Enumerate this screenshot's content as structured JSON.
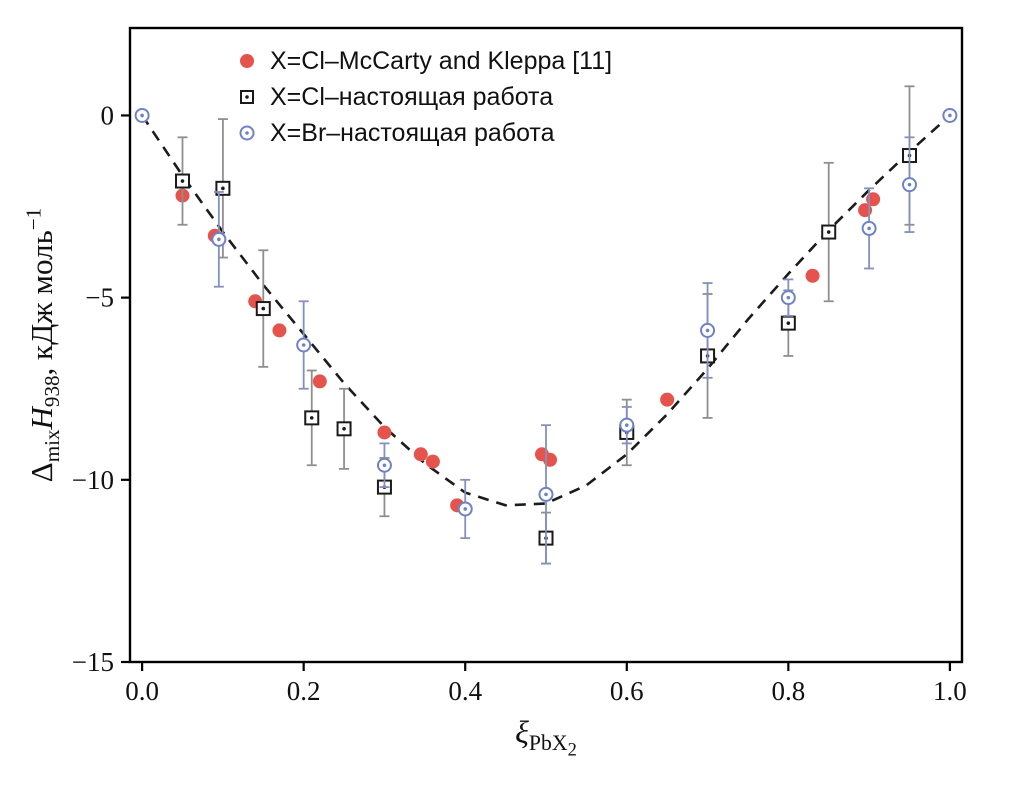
{
  "chart_data": {
    "type": "scatter",
    "title": "",
    "xlabel": "ξ_PbX2",
    "ylabel": "Δ_mix H_938, кДж моль^−1",
    "xlabel_parts": {
      "base": "ξ",
      "sub": "PbX",
      "subsub": "2"
    },
    "ylabel_parts": {
      "delta": "Δ",
      "delta_sub": "mix",
      "symbol": "H",
      "symbol_sub": "938",
      "units": ", кДж моль",
      "units_sup": "−1"
    },
    "xlim": [
      -0.015,
      1.015
    ],
    "ylim": [
      -15,
      2.4
    ],
    "grid": false,
    "legend_position": "top-center-inside",
    "xticks": [
      {
        "v": 0.0,
        "label": "0.0"
      },
      {
        "v": 0.2,
        "label": "0.2"
      },
      {
        "v": 0.4,
        "label": "0.4"
      },
      {
        "v": 0.6,
        "label": "0.6"
      },
      {
        "v": 0.8,
        "label": "0.8"
      },
      {
        "v": 1.0,
        "label": "1.0"
      }
    ],
    "yticks": [
      {
        "v": 0,
        "label": "0"
      },
      {
        "v": -5,
        "label": "−5"
      },
      {
        "v": -10,
        "label": "−10"
      },
      {
        "v": -15,
        "label": "−15"
      }
    ],
    "series": [
      {
        "name": "X=Cl–McCarty and Kleppa [11]",
        "marker": "filled-circle",
        "color": "#e5544c",
        "points": [
          [
            0.05,
            -2.2
          ],
          [
            0.09,
            -3.3
          ],
          [
            0.14,
            -5.1
          ],
          [
            0.17,
            -5.9
          ],
          [
            0.22,
            -7.3
          ],
          [
            0.3,
            -8.7
          ],
          [
            0.345,
            -9.3
          ],
          [
            0.36,
            -9.5
          ],
          [
            0.39,
            -10.7
          ],
          [
            0.495,
            -9.3
          ],
          [
            0.505,
            -9.45
          ],
          [
            0.65,
            -7.8
          ],
          [
            0.83,
            -4.4
          ],
          [
            0.895,
            -2.6
          ],
          [
            0.905,
            -2.3
          ]
        ]
      },
      {
        "name": "X=Cl–настоящая работа",
        "marker": "open-square",
        "color": "#1a1a1a",
        "error_color": "#8f8f8f",
        "points": [
          [
            0.05,
            -1.8,
            1.2
          ],
          [
            0.1,
            -2.0,
            1.9
          ],
          [
            0.15,
            -5.3,
            1.6
          ],
          [
            0.21,
            -8.3,
            1.3
          ],
          [
            0.25,
            -8.6,
            1.1
          ],
          [
            0.3,
            -10.2,
            0.8
          ],
          [
            0.5,
            -11.6,
            0.7
          ],
          [
            0.6,
            -8.7,
            0.9
          ],
          [
            0.7,
            -6.6,
            1.7
          ],
          [
            0.8,
            -5.7,
            0.9
          ],
          [
            0.85,
            -3.2,
            1.9
          ],
          [
            0.95,
            -1.1,
            1.9
          ]
        ]
      },
      {
        "name": "X=Br–настоящая работа",
        "marker": "open-circle",
        "color": "#6f82c6",
        "error_color": "#8490bd",
        "points": [
          [
            0.0,
            0.0,
            0
          ],
          [
            0.095,
            -3.4,
            1.3
          ],
          [
            0.2,
            -6.3,
            1.2
          ],
          [
            0.3,
            -9.6,
            0.6
          ],
          [
            0.4,
            -10.8,
            0.8
          ],
          [
            0.5,
            -10.4,
            1.9
          ],
          [
            0.6,
            -8.5,
            0.5
          ],
          [
            0.7,
            -5.9,
            1.3
          ],
          [
            0.8,
            -5.0,
            0.5
          ],
          [
            0.9,
            -3.1,
            1.1
          ],
          [
            0.95,
            -1.9,
            1.3
          ],
          [
            1.0,
            0.0,
            0
          ]
        ]
      }
    ],
    "fit_curve": {
      "style": "dashed",
      "color": "#1c1c1c",
      "points": [
        [
          0.0,
          0.0
        ],
        [
          0.05,
          -1.65
        ],
        [
          0.1,
          -3.2
        ],
        [
          0.15,
          -4.65
        ],
        [
          0.2,
          -6.0
        ],
        [
          0.25,
          -7.35
        ],
        [
          0.3,
          -8.55
        ],
        [
          0.35,
          -9.55
        ],
        [
          0.4,
          -10.35
        ],
        [
          0.45,
          -10.7
        ],
        [
          0.5,
          -10.65
        ],
        [
          0.55,
          -10.15
        ],
        [
          0.6,
          -9.3
        ],
        [
          0.65,
          -8.2
        ],
        [
          0.7,
          -6.95
        ],
        [
          0.75,
          -5.6
        ],
        [
          0.8,
          -4.35
        ],
        [
          0.85,
          -3.15
        ],
        [
          0.9,
          -2.05
        ],
        [
          0.95,
          -1.0
        ],
        [
          1.0,
          0.0
        ]
      ]
    }
  }
}
